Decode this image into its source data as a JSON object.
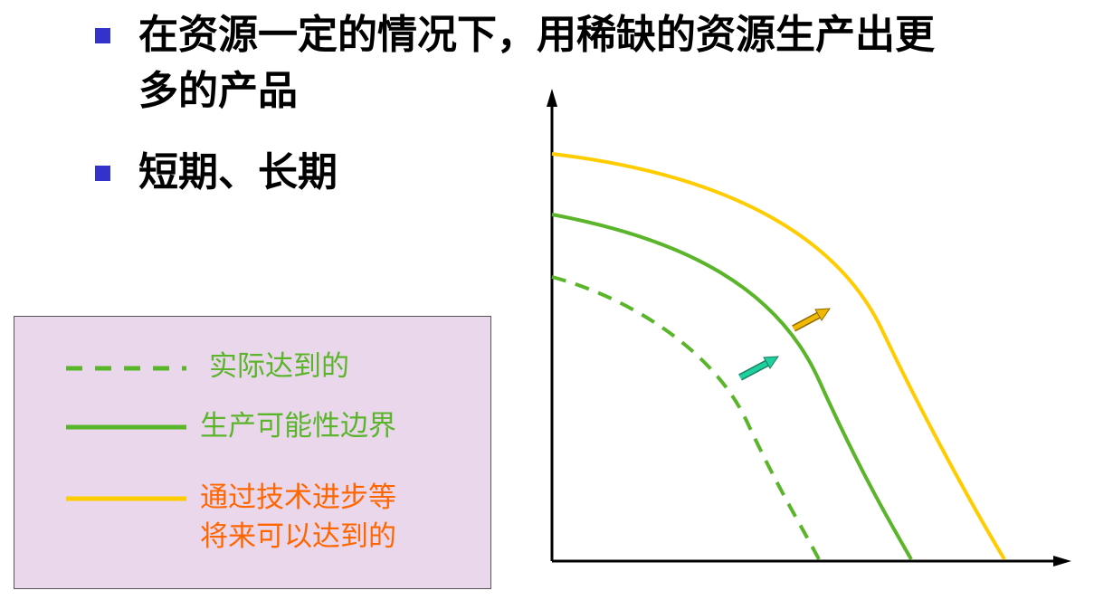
{
  "bullets": [
    {
      "text_line1": "在资源一定的情况下，用稀缺的资源生产出更",
      "text_line2": "多的产品"
    },
    {
      "text_line1": "短期、长期"
    }
  ],
  "legend": [
    {
      "label": "实际达到的",
      "style": "dashed",
      "color": "#5ab52a",
      "text_color": "#5ab52a"
    },
    {
      "label": "生产可能性边界",
      "style": "solid",
      "color": "#5ab52a",
      "text_color": "#5ab52a"
    },
    {
      "label_line1": "通过技术进步等",
      "label_line2": "将来可以达到的",
      "style": "solid",
      "color": "#ffcc00",
      "text_color": "#ff6600"
    }
  ],
  "colors": {
    "bullet": "#3333cc",
    "legend_bg": "#ead7ec",
    "green": "#5ab52a",
    "yellow": "#ffcc00",
    "orange": "#ff6600",
    "teal_arrow": "#1ecfa0",
    "gold_arrow": "#f0b800",
    "axis": "#000000"
  },
  "diagram": {
    "curves": [
      "actual-dashed-green",
      "ppf-solid-green",
      "future-solid-yellow"
    ],
    "arrows": [
      "shift-arrow-teal",
      "shift-arrow-gold"
    ],
    "axes": [
      "y-axis-arrow",
      "x-axis-arrow"
    ]
  }
}
